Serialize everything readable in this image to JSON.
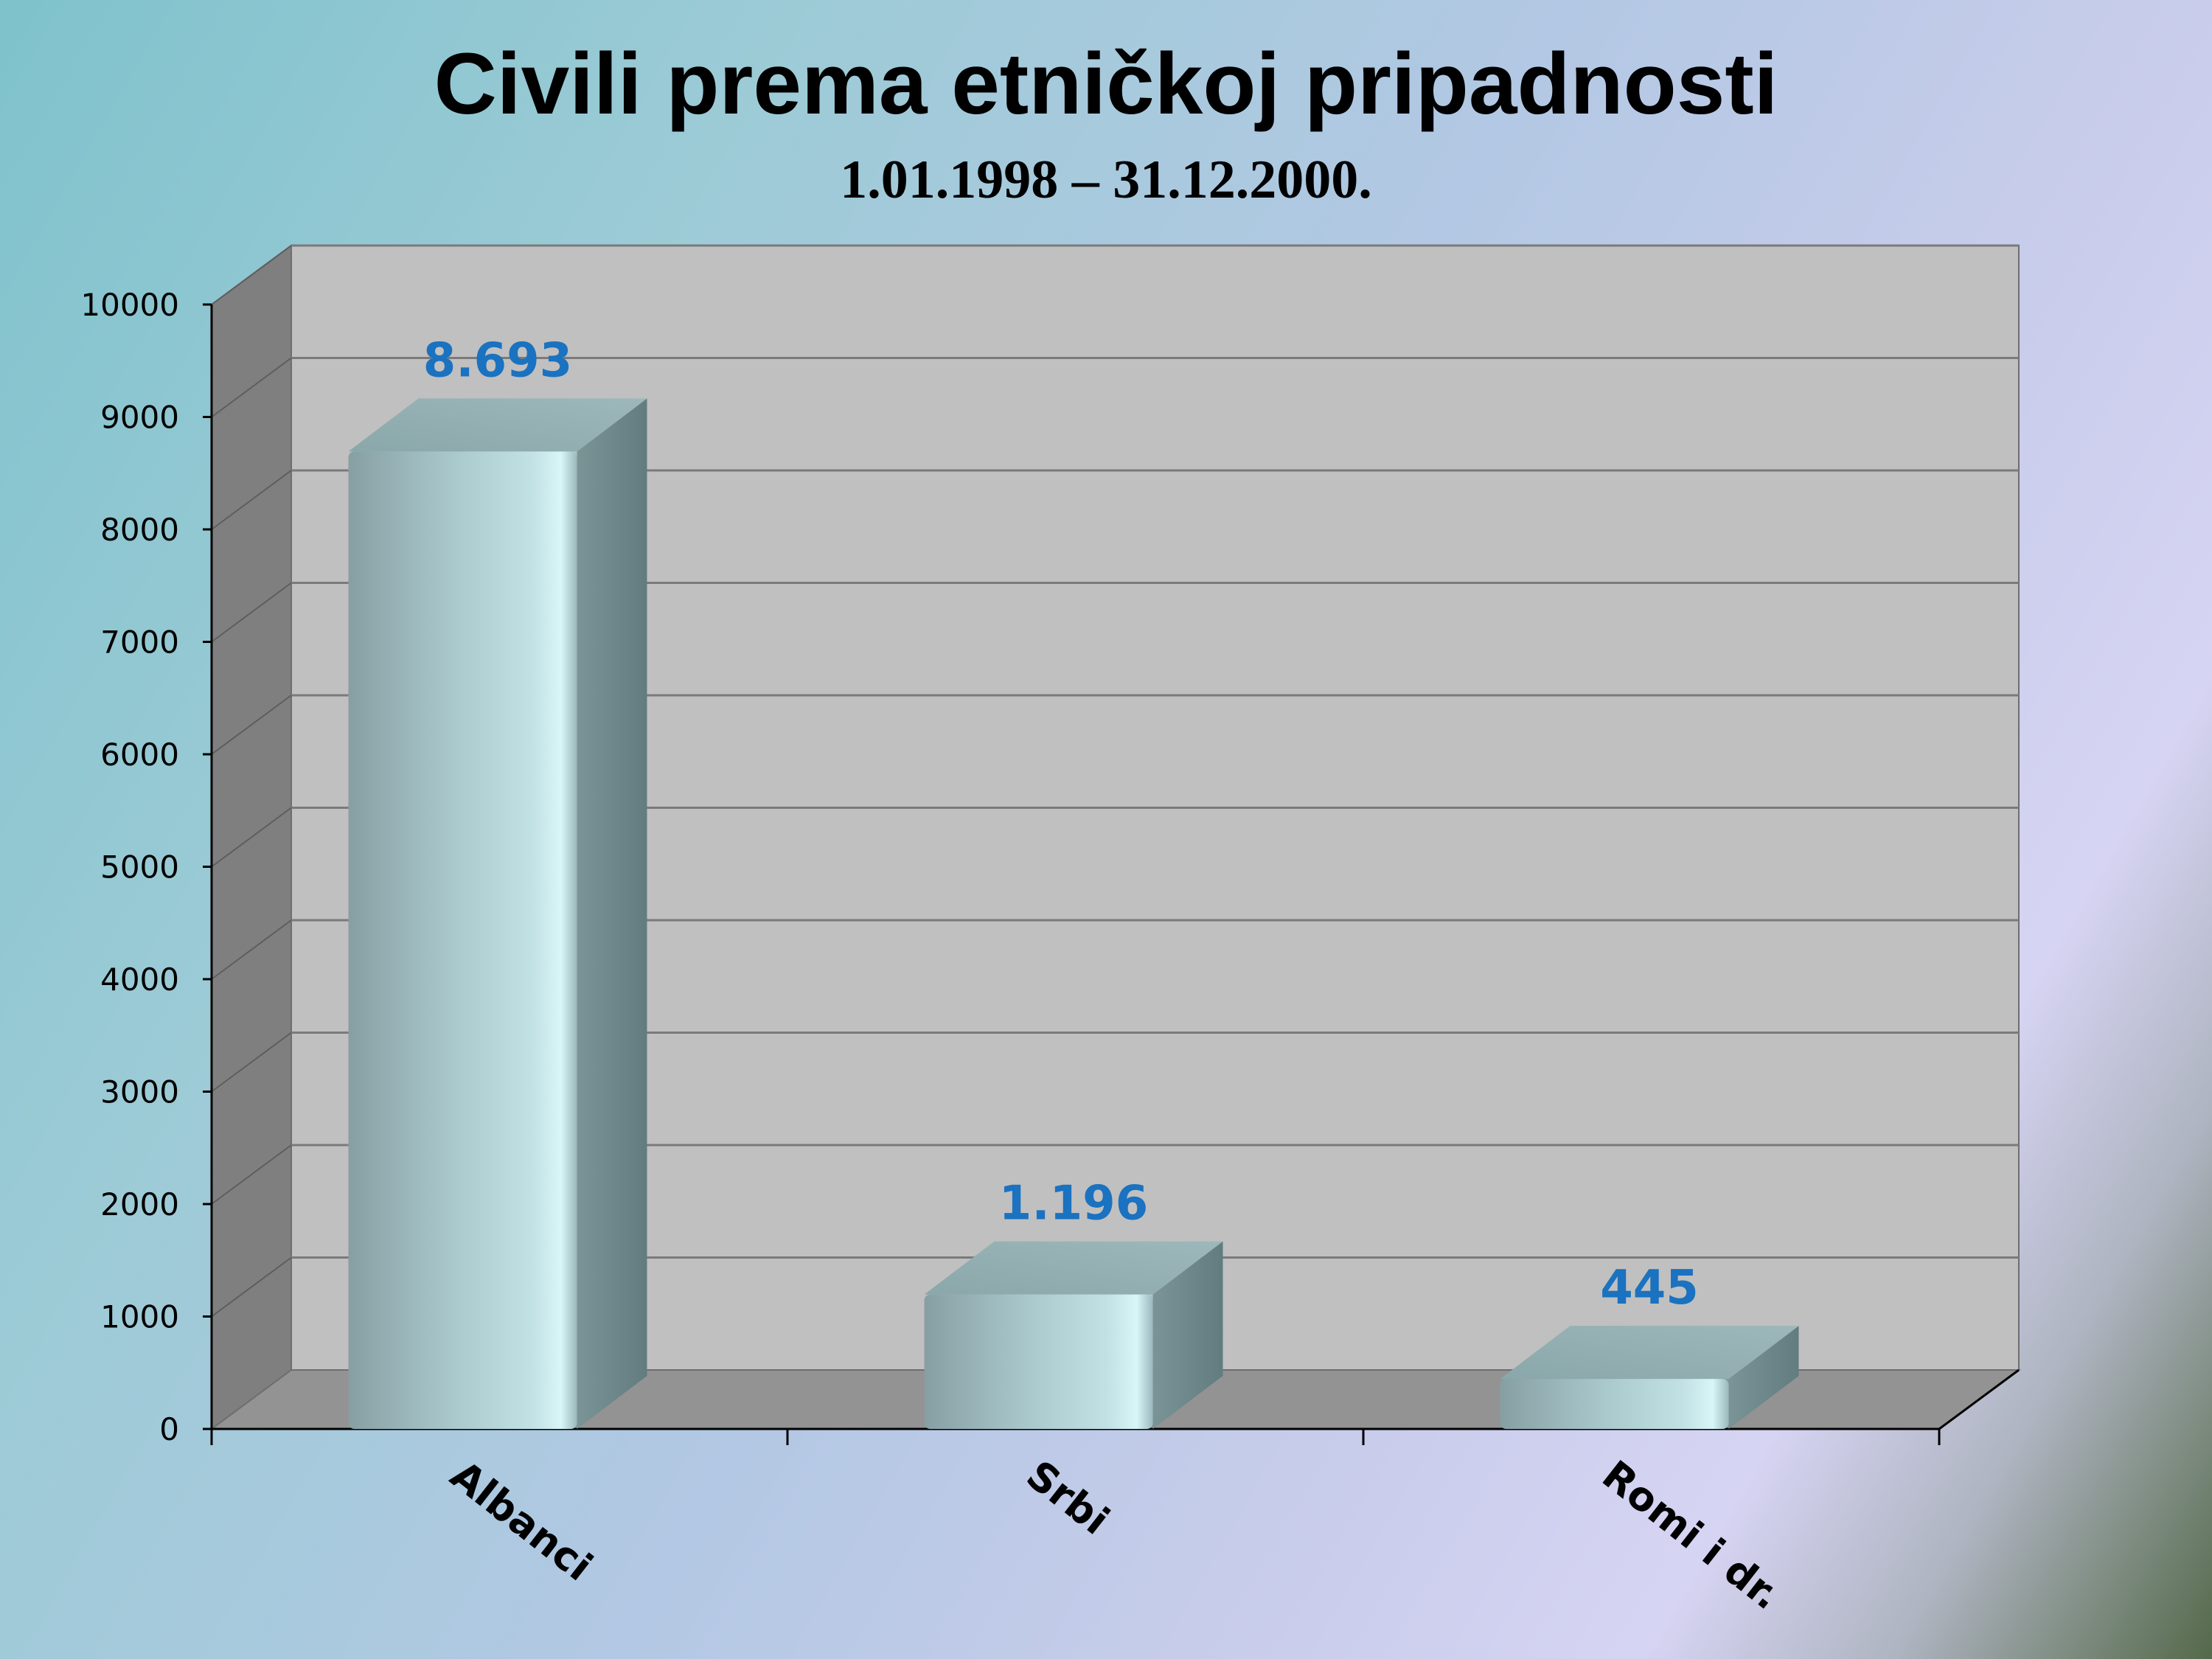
{
  "chart_data": {
    "type": "bar",
    "title": "Civili prema etničkoj pripadnosti",
    "subtitle": "1.01.1998 – 31.12.2000.",
    "categories": [
      "Albanci",
      "Srbi",
      "Romi i dr."
    ],
    "values": [
      8693,
      1196,
      445
    ],
    "data_labels": [
      "8.693",
      "1.196",
      "445"
    ],
    "xlabel": "",
    "ylabel": "",
    "ylim": [
      0,
      10000
    ],
    "yticks": [
      0,
      1000,
      2000,
      3000,
      4000,
      5000,
      6000,
      7000,
      8000,
      9000,
      10000
    ],
    "grid": true,
    "legend": "none",
    "style": "3d-column",
    "colors": {
      "bar": "#a7cdd2",
      "bar_side": "#6f8d90",
      "bar_top": "#8faeb1",
      "wall_back": "#c0c0c0",
      "wall_side": "#7f7f7f",
      "floor": "#939393",
      "gridline": "#7a7a7a",
      "data_label": "#1a72c0"
    }
  }
}
